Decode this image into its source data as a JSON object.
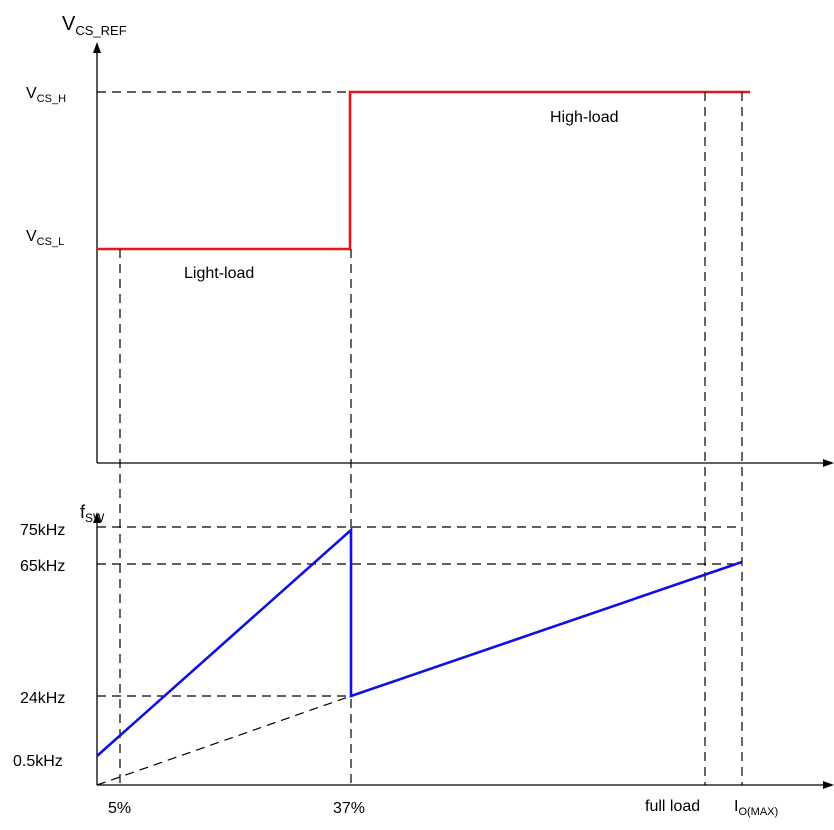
{
  "top_plot": {
    "y_axis": {
      "main": "V",
      "sub": "CS_REF"
    },
    "levels": [
      {
        "main": "V",
        "sub": "CS_H"
      },
      {
        "main": "V",
        "sub": "CS_L"
      }
    ],
    "regions": {
      "high": "High-load",
      "light": "Light-load"
    },
    "colors": {
      "trace": "#e8141b"
    }
  },
  "bottom_plot": {
    "y_axis": {
      "main": "f",
      "sub": "SW"
    },
    "y_ticks": [
      "75kHz",
      "65kHz",
      "24kHz",
      "0.5kHz"
    ],
    "colors": {
      "trace": "#1010e0"
    }
  },
  "x_axis": {
    "ticks": [
      "5%",
      "37%",
      "full load"
    ],
    "end": {
      "main": "I",
      "sub": "O(MAX)"
    }
  }
}
